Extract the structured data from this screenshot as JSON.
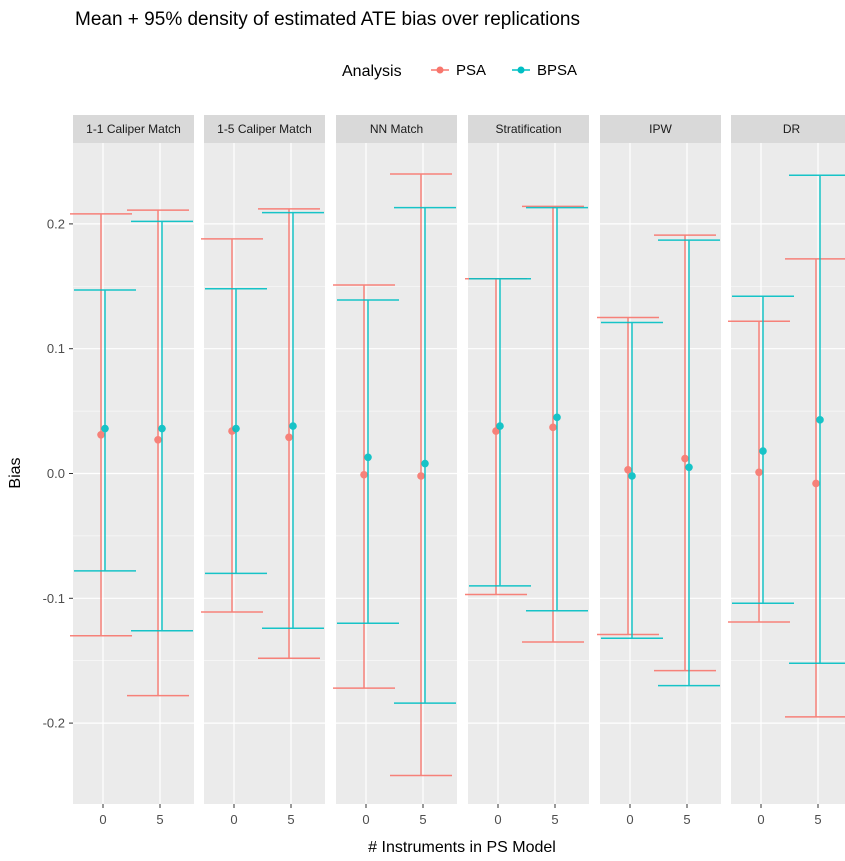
{
  "colors": {
    "PSA": "#F8766D",
    "BPSA": "#00BFC4",
    "panel_bg": "#EBEBEB",
    "strip_bg": "#D9D9D9",
    "grid": "#FFFFFF"
  },
  "chart_data": {
    "type": "errorbar",
    "title": "Mean + 95% density of estimated ATE bias over replications",
    "xlabel": "# Instruments in PS Model",
    "ylabel": "Bias",
    "legend": {
      "title": "Analysis",
      "placement": "top",
      "entries": [
        "PSA",
        "BPSA"
      ]
    },
    "ylim": [
      -0.265,
      0.26
    ],
    "y_ticks": [
      -0.2,
      -0.1,
      0.0,
      0.1,
      0.2
    ],
    "y_tick_labels": [
      "-0.2",
      "-0.1",
      "0.0",
      "0.1",
      "0.2"
    ],
    "x_categories": [
      "0",
      "5"
    ],
    "grid": true,
    "panels": [
      {
        "label": "1-1 Caliper Match",
        "points": [
          {
            "x": "0",
            "series": "PSA",
            "mean": 0.031,
            "lower": -0.13,
            "upper": 0.208
          },
          {
            "x": "0",
            "series": "BPSA",
            "mean": 0.036,
            "lower": -0.078,
            "upper": 0.147
          },
          {
            "x": "5",
            "series": "PSA",
            "mean": 0.027,
            "lower": -0.178,
            "upper": 0.211
          },
          {
            "x": "5",
            "series": "BPSA",
            "mean": 0.036,
            "lower": -0.126,
            "upper": 0.202
          }
        ]
      },
      {
        "label": "1-5 Caliper Match",
        "points": [
          {
            "x": "0",
            "series": "PSA",
            "mean": 0.034,
            "lower": -0.111,
            "upper": 0.188
          },
          {
            "x": "0",
            "series": "BPSA",
            "mean": 0.036,
            "lower": -0.08,
            "upper": 0.148
          },
          {
            "x": "5",
            "series": "PSA",
            "mean": 0.029,
            "lower": -0.148,
            "upper": 0.212
          },
          {
            "x": "5",
            "series": "BPSA",
            "mean": 0.038,
            "lower": -0.124,
            "upper": 0.209
          }
        ]
      },
      {
        "label": "NN Match",
        "points": [
          {
            "x": "0",
            "series": "PSA",
            "mean": -0.001,
            "lower": -0.172,
            "upper": 0.151
          },
          {
            "x": "0",
            "series": "BPSA",
            "mean": 0.013,
            "lower": -0.12,
            "upper": 0.139
          },
          {
            "x": "5",
            "series": "PSA",
            "mean": -0.002,
            "lower": -0.242,
            "upper": 0.24
          },
          {
            "x": "5",
            "series": "BPSA",
            "mean": 0.008,
            "lower": -0.184,
            "upper": 0.213
          }
        ]
      },
      {
        "label": "Stratification",
        "points": [
          {
            "x": "0",
            "series": "PSA",
            "mean": 0.034,
            "lower": -0.097,
            "upper": 0.156
          },
          {
            "x": "0",
            "series": "BPSA",
            "mean": 0.038,
            "lower": -0.09,
            "upper": 0.156
          },
          {
            "x": "5",
            "series": "PSA",
            "mean": 0.037,
            "lower": -0.135,
            "upper": 0.214
          },
          {
            "x": "5",
            "series": "BPSA",
            "mean": 0.045,
            "lower": -0.11,
            "upper": 0.213
          }
        ]
      },
      {
        "label": "IPW",
        "points": [
          {
            "x": "0",
            "series": "PSA",
            "mean": 0.003,
            "lower": -0.129,
            "upper": 0.125
          },
          {
            "x": "0",
            "series": "BPSA",
            "mean": -0.002,
            "lower": -0.132,
            "upper": 0.121
          },
          {
            "x": "5",
            "series": "PSA",
            "mean": 0.012,
            "lower": -0.158,
            "upper": 0.191
          },
          {
            "x": "5",
            "series": "BPSA",
            "mean": 0.005,
            "lower": -0.17,
            "upper": 0.187
          }
        ]
      },
      {
        "label": "DR",
        "points": [
          {
            "x": "0",
            "series": "PSA",
            "mean": 0.001,
            "lower": -0.119,
            "upper": 0.122
          },
          {
            "x": "0",
            "series": "BPSA",
            "mean": 0.018,
            "lower": -0.104,
            "upper": 0.142
          },
          {
            "x": "5",
            "series": "PSA",
            "mean": -0.008,
            "lower": -0.195,
            "upper": 0.172
          },
          {
            "x": "5",
            "series": "BPSA",
            "mean": 0.043,
            "lower": -0.152,
            "upper": 0.239
          }
        ]
      }
    ]
  }
}
